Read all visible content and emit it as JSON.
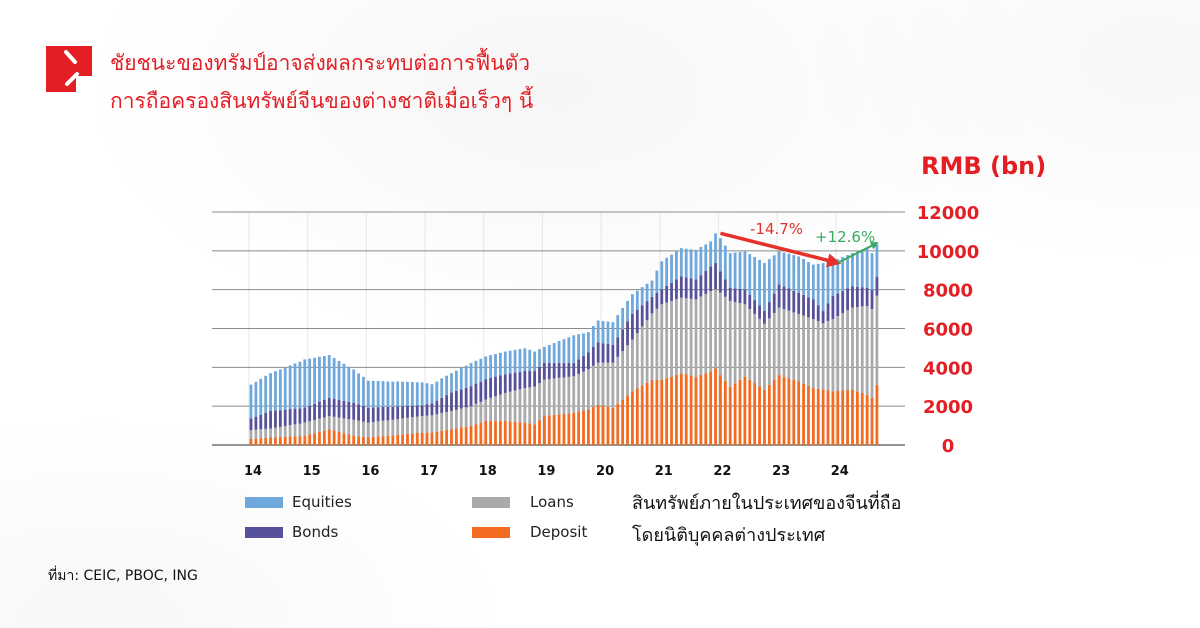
{
  "header": {
    "title_lines": [
      "ชัยชนะของทรัมป์อาจส่งผลกระทบต่อการฟื้นตัว",
      "การถือครองสินทรัพย์จีนของต่างชาติเมื่อเร็วๆ นี้"
    ],
    "logo": "red-corner-logo",
    "brand_color": "#e31e24"
  },
  "source": "ที่มา: CEIC, PBOC, ING",
  "chart_data": {
    "type": "bar",
    "stacked": true,
    "unit_label": "RMB (bn)",
    "note_lines": [
      "สินทรัพย์ภายในประเทศของจีนที่ถือ",
      "โดยนิติบุคคลต่างประเทศ"
    ],
    "ylim": [
      0,
      12000
    ],
    "y_ticks": [
      "0",
      "2000",
      "4000",
      "6000",
      "8000",
      "10000",
      "12000"
    ],
    "y_axis_side": "right",
    "x_tick_labels": [
      "14",
      "15",
      "16",
      "17",
      "18",
      "19",
      "20",
      "21",
      "22",
      "23",
      "24"
    ],
    "grid": true,
    "legend_placement": "bottom",
    "categories": [
      "2014-01",
      "2014-02",
      "2014-03",
      "2014-04",
      "2014-05",
      "2014-06",
      "2014-07",
      "2014-08",
      "2014-09",
      "2014-10",
      "2014-11",
      "2014-12",
      "2015-01",
      "2015-02",
      "2015-03",
      "2015-04",
      "2015-05",
      "2015-06",
      "2015-07",
      "2015-08",
      "2015-09",
      "2015-10",
      "2015-11",
      "2015-12",
      "2016-01",
      "2016-02",
      "2016-03",
      "2016-04",
      "2016-05",
      "2016-06",
      "2016-07",
      "2016-08",
      "2016-09",
      "2016-10",
      "2016-11",
      "2016-12",
      "2017-01",
      "2017-02",
      "2017-03",
      "2017-04",
      "2017-05",
      "2017-06",
      "2017-07",
      "2017-08",
      "2017-09",
      "2017-10",
      "2017-11",
      "2017-12",
      "2018-01",
      "2018-02",
      "2018-03",
      "2018-04",
      "2018-05",
      "2018-06",
      "2018-07",
      "2018-08",
      "2018-09",
      "2018-10",
      "2018-11",
      "2018-12",
      "2019-01",
      "2019-02",
      "2019-03",
      "2019-04",
      "2019-05",
      "2019-06",
      "2019-07",
      "2019-08",
      "2019-09",
      "2019-10",
      "2019-11",
      "2019-12",
      "2020-01",
      "2020-02",
      "2020-03",
      "2020-04",
      "2020-05",
      "2020-06",
      "2020-07",
      "2020-08",
      "2020-09",
      "2020-10",
      "2020-11",
      "2020-12",
      "2021-01",
      "2021-02",
      "2021-03",
      "2021-04",
      "2021-05",
      "2021-06",
      "2021-07",
      "2021-08",
      "2021-09",
      "2021-10",
      "2021-11",
      "2021-12",
      "2022-01",
      "2022-02",
      "2022-03",
      "2022-04",
      "2022-05",
      "2022-06",
      "2022-07",
      "2022-08",
      "2022-09",
      "2022-10",
      "2022-11",
      "2022-12",
      "2023-01",
      "2023-02",
      "2023-03",
      "2023-04",
      "2023-05",
      "2023-06",
      "2023-07",
      "2023-08",
      "2023-09",
      "2023-10",
      "2023-11",
      "2023-12",
      "2024-01",
      "2024-02",
      "2024-03",
      "2024-04",
      "2024-05",
      "2024-06",
      "2024-07",
      "2024-08",
      "2024-09"
    ],
    "series": [
      {
        "name": "Deposit",
        "color": "#f26b21",
        "values": [
          310,
          330,
          350,
          370,
          390,
          400,
          410,
          430,
          440,
          450,
          460,
          480,
          540,
          610,
          680,
          740,
          810,
          740,
          680,
          610,
          540,
          480,
          450,
          420,
          390,
          410,
          440,
          460,
          480,
          500,
          530,
          550,
          570,
          600,
          620,
          640,
          640,
          640,
          680,
          730,
          770,
          810,
          850,
          900,
          940,
          980,
          1070,
          1150,
          1240,
          1240,
          1240,
          1240,
          1240,
          1220,
          1200,
          1170,
          1150,
          1110,
          1070,
          1280,
          1490,
          1520,
          1550,
          1580,
          1600,
          1630,
          1660,
          1720,
          1770,
          1830,
          1960,
          2080,
          2020,
          1970,
          1910,
          2120,
          2340,
          2550,
          2760,
          2910,
          3060,
          3200,
          3350,
          3350,
          3350,
          3440,
          3520,
          3610,
          3690,
          3630,
          3580,
          3520,
          3610,
          3690,
          3780,
          3940,
          3600,
          3300,
          3000,
          3170,
          3350,
          3520,
          3350,
          3190,
          3020,
          2850,
          3100,
          3350,
          3600,
          3520,
          3440,
          3350,
          3270,
          3160,
          3040,
          2930,
          2890,
          2850,
          2810,
          2760,
          2780,
          2810,
          2830,
          2850,
          2760,
          2680,
          2590,
          2420,
          3100
        ]
      },
      {
        "name": "Loans",
        "color": "#aaaaaa",
        "values": [
          460,
          460,
          460,
          460,
          460,
          490,
          520,
          550,
          580,
          610,
          640,
          680,
          680,
          680,
          680,
          680,
          680,
          710,
          730,
          760,
          790,
          820,
          800,
          780,
          760,
          770,
          780,
          790,
          790,
          800,
          810,
          820,
          830,
          830,
          840,
          850,
          870,
          890,
          900,
          920,
          930,
          940,
          960,
          980,
          1000,
          1020,
          1050,
          1070,
          1100,
          1190,
          1270,
          1360,
          1440,
          1530,
          1610,
          1700,
          1780,
          1860,
          1940,
          1910,
          1880,
          1880,
          1880,
          1880,
          1880,
          1880,
          1880,
          1940,
          2010,
          2070,
          2120,
          2160,
          2220,
          2270,
          2330,
          2420,
          2500,
          2590,
          2670,
          2860,
          3050,
          3240,
          3430,
          3670,
          3900,
          3900,
          3900,
          3900,
          3900,
          3930,
          3950,
          3980,
          4040,
          4090,
          4150,
          4080,
          4250,
          4335,
          4420,
          4190,
          3960,
          3730,
          3650,
          3560,
          3480,
          3390,
          3420,
          3450,
          3480,
          3480,
          3480,
          3480,
          3480,
          3510,
          3530,
          3560,
          3490,
          3420,
          3580,
          3730,
          3860,
          3980,
          4110,
          4230,
          4340,
          4460,
          4570,
          4580,
          4590
        ]
      },
      {
        "name": "Bonds",
        "color": "#57509a",
        "values": [
          600,
          670,
          750,
          830,
          900,
          880,
          860,
          840,
          830,
          810,
          790,
          770,
          800,
          830,
          870,
          900,
          930,
          920,
          910,
          900,
          890,
          880,
          840,
          810,
          770,
          750,
          730,
          710,
          690,
          670,
          650,
          630,
          610,
          590,
          570,
          550,
          580,
          610,
          700,
          780,
          870,
          950,
          970,
          990,
          1010,
          1030,
          1040,
          1040,
          1050,
          1030,
          1010,
          980,
          960,
          940,
          920,
          900,
          880,
          840,
          800,
          830,
          850,
          820,
          790,
          770,
          740,
          710,
          680,
          750,
          810,
          880,
          970,
          1050,
          1000,
          960,
          910,
          1010,
          1120,
          1220,
          1320,
          1200,
          1090,
          970,
          850,
          810,
          760,
          850,
          930,
          1020,
          1100,
          1070,
          1050,
          1020,
          1100,
          1190,
          1270,
          1350,
          1100,
          890,
          680,
          710,
          730,
          760,
          740,
          710,
          690,
          660,
          840,
          1010,
          1190,
          1160,
          1140,
          1110,
          1080,
          1060,
          1030,
          1010,
          820,
          630,
          910,
          1180,
          1160,
          1140,
          1120,
          1100,
          1050,
          990,
          940,
          1000,
          980
        ]
      },
      {
        "name": "Equities",
        "color": "#6fa8dc",
        "values": [
          1740,
          1790,
          1850,
          1900,
          1950,
          2030,
          2100,
          2180,
          2250,
          2330,
          2400,
          2480,
          2430,
          2370,
          2320,
          2260,
          2210,
          2110,
          2010,
          1910,
          1810,
          1710,
          1600,
          1500,
          1390,
          1370,
          1350,
          1330,
          1310,
          1290,
          1280,
          1260,
          1240,
          1220,
          1200,
          1180,
          1090,
          990,
          990,
          1000,
          1000,
          1000,
          1050,
          1100,
          1140,
          1190,
          1180,
          1180,
          1170,
          1170,
          1170,
          1170,
          1170,
          1170,
          1170,
          1170,
          1170,
          1090,
          1000,
          920,
          830,
          930,
          1030,
          1130,
          1230,
          1330,
          1430,
          1300,
          1160,
          1030,
          1080,
          1120,
          1140,
          1160,
          1180,
          1140,
          1100,
          1060,
          1020,
          980,
          930,
          890,
          840,
          1150,
          1450,
          1450,
          1450,
          1450,
          1450,
          1480,
          1500,
          1530,
          1450,
          1360,
          1280,
          1530,
          1700,
          1740,
          1780,
          1840,
          1900,
          1960,
          2090,
          2220,
          2340,
          2470,
          2210,
          1960,
          1700,
          1750,
          1790,
          1840,
          1880,
          1850,
          1820,
          1790,
          2130,
          2470,
          2130,
          1790,
          1770,
          1750,
          1720,
          1700,
          1810,
          1930,
          2040,
          1880,
          1670
        ]
      }
    ],
    "annotations": [
      {
        "text": "-14.7%",
        "color": "#e8302a",
        "from": [
          "2022-01",
          10900
        ],
        "to": [
          "2024-01",
          9380
        ]
      },
      {
        "text": "+12.6%",
        "color": "#3aaa5c",
        "from": [
          "2024-01",
          9380
        ],
        "to": [
          "2024-09",
          10400
        ]
      }
    ]
  }
}
